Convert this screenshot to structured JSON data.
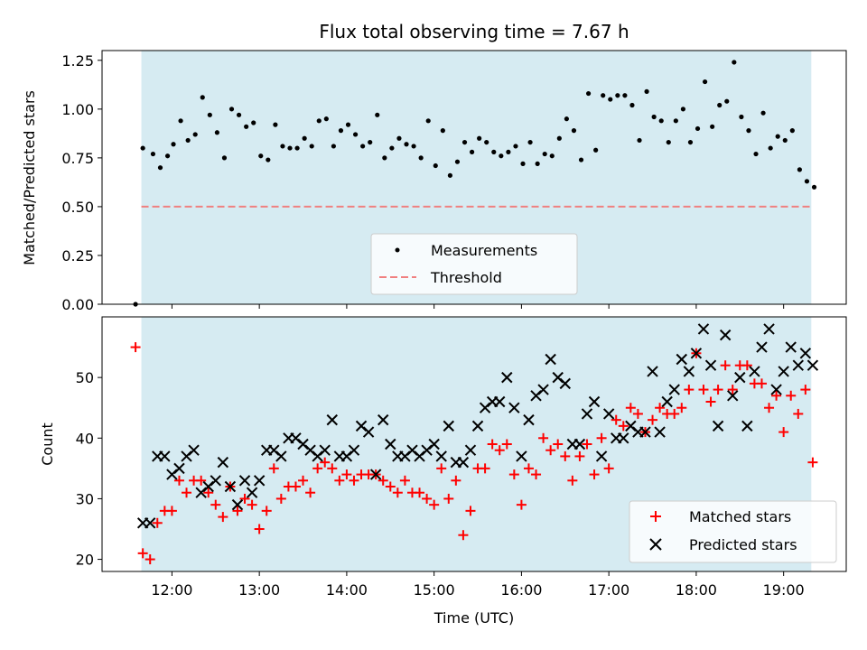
{
  "chart_data": [
    {
      "type": "scatter",
      "title": "Flux total observing time = 7.67 h",
      "xlabel": "",
      "ylabel": "Matched/Predicted stars",
      "xlim": [
        "11:12",
        "19:43"
      ],
      "ylim": [
        0,
        1.3
      ],
      "yticks": [
        0.0,
        0.25,
        0.5,
        0.75,
        1.0,
        1.25
      ],
      "ytick_labels": [
        "0.00",
        "0.25",
        "0.50",
        "0.75",
        "1.00",
        "1.25"
      ],
      "shaded_span": [
        "11:39",
        "19:19"
      ],
      "shaded_color": "#add8e6",
      "legend_position": "lower center",
      "threshold": {
        "name": "Threshold",
        "value": 0.5,
        "color": "#f08080",
        "style": "dashed"
      },
      "series": [
        {
          "name": "Measurements",
          "color": "#000000",
          "marker": "dot",
          "x": [
            "11:35",
            "11:40",
            "11:47",
            "11:52",
            "11:57",
            "12:01",
            "12:06",
            "12:11",
            "12:16",
            "12:21",
            "12:26",
            "12:31",
            "12:36",
            "12:41",
            "12:46",
            "12:51",
            "12:56",
            "13:01",
            "13:06",
            "13:11",
            "13:16",
            "13:21",
            "13:26",
            "13:31",
            "13:36",
            "13:41",
            "13:46",
            "13:51",
            "13:56",
            "14:01",
            "14:06",
            "14:11",
            "14:16",
            "14:21",
            "14:26",
            "14:31",
            "14:36",
            "14:41",
            "14:46",
            "14:51",
            "14:56",
            "15:01",
            "15:06",
            "15:11",
            "15:16",
            "15:21",
            "15:26",
            "15:31",
            "15:36",
            "15:41",
            "15:46",
            "15:51",
            "15:56",
            "16:01",
            "16:06",
            "16:11",
            "16:16",
            "16:21",
            "16:26",
            "16:31",
            "16:36",
            "16:41",
            "16:46",
            "16:51",
            "16:56",
            "17:01",
            "17:06",
            "17:11",
            "17:16",
            "17:21",
            "17:26",
            "17:31",
            "17:36",
            "17:41",
            "17:46",
            "17:51",
            "17:56",
            "18:01",
            "18:06",
            "18:11",
            "18:16",
            "18:21",
            "18:26",
            "18:31",
            "18:36",
            "18:41",
            "18:46",
            "18:51",
            "18:56",
            "19:01",
            "19:06",
            "19:11",
            "19:16",
            "19:21"
          ],
          "y": [
            0.0,
            0.8,
            0.77,
            0.7,
            0.76,
            0.82,
            0.94,
            0.84,
            0.87,
            1.06,
            0.97,
            0.88,
            0.75,
            1.0,
            0.97,
            0.91,
            0.93,
            0.76,
            0.74,
            0.92,
            0.81,
            0.8,
            0.8,
            0.85,
            0.81,
            0.94,
            0.95,
            0.81,
            0.89,
            0.92,
            0.87,
            0.81,
            0.83,
            0.97,
            0.75,
            0.8,
            0.85,
            0.82,
            0.81,
            0.75,
            0.94,
            0.71,
            0.89,
            0.66,
            0.73,
            0.83,
            0.78,
            0.85,
            0.83,
            0.78,
            0.76,
            0.78,
            0.81,
            0.72,
            0.83,
            0.72,
            0.77,
            0.76,
            0.85,
            0.95,
            0.89,
            0.74,
            1.08,
            0.79,
            1.07,
            1.05,
            1.07,
            1.07,
            1.02,
            0.84,
            1.09,
            0.96,
            0.94,
            0.83,
            0.94,
            1.0,
            0.83,
            0.9,
            1.14,
            0.91,
            1.02,
            1.04,
            1.24,
            0.96,
            0.89,
            0.77,
            0.98,
            0.8,
            0.86,
            0.84,
            0.89,
            0.69,
            0.63,
            0.6
          ]
        }
      ]
    },
    {
      "type": "scatter",
      "title": "",
      "xlabel": "Time (UTC)",
      "ylabel": "Count",
      "xlim": [
        "11:12",
        "19:43"
      ],
      "ylim": [
        18,
        60
      ],
      "yticks": [
        20,
        30,
        40,
        50
      ],
      "xticks": [
        "12:00",
        "13:00",
        "14:00",
        "15:00",
        "16:00",
        "17:00",
        "18:00",
        "19:00"
      ],
      "shaded_span": [
        "11:39",
        "19:19"
      ],
      "shaded_color": "#add8e6",
      "legend_position": "lower right",
      "series": [
        {
          "name": "Matched stars",
          "color": "#ff0000",
          "marker": "plus",
          "x": [
            "11:35",
            "11:40",
            "11:45",
            "11:50",
            "11:55",
            "12:00",
            "12:05",
            "12:10",
            "12:15",
            "12:20",
            "12:25",
            "12:30",
            "12:35",
            "12:40",
            "12:45",
            "12:50",
            "12:55",
            "13:00",
            "13:05",
            "13:10",
            "13:15",
            "13:20",
            "13:25",
            "13:30",
            "13:35",
            "13:40",
            "13:45",
            "13:50",
            "13:55",
            "14:00",
            "14:05",
            "14:10",
            "14:15",
            "14:20",
            "14:25",
            "14:30",
            "14:35",
            "14:40",
            "14:45",
            "14:50",
            "14:55",
            "15:00",
            "15:05",
            "15:10",
            "15:15",
            "15:20",
            "15:25",
            "15:30",
            "15:35",
            "15:40",
            "15:45",
            "15:50",
            "15:55",
            "16:00",
            "16:05",
            "16:10",
            "16:15",
            "16:20",
            "16:25",
            "16:30",
            "16:35",
            "16:40",
            "16:45",
            "16:50",
            "16:55",
            "17:00",
            "17:05",
            "17:10",
            "17:15",
            "17:20",
            "17:25",
            "17:30",
            "17:35",
            "17:40",
            "17:45",
            "17:50",
            "17:55",
            "18:00",
            "18:05",
            "18:10",
            "18:15",
            "18:20",
            "18:25",
            "18:30",
            "18:35",
            "18:40",
            "18:45",
            "18:50",
            "18:55",
            "19:00",
            "19:05",
            "19:10",
            "19:15",
            "19:20"
          ],
          "y": [
            55,
            21,
            20,
            26,
            28,
            28,
            33,
            31,
            33,
            33,
            31,
            29,
            27,
            32,
            28,
            30,
            29,
            25,
            28,
            35,
            30,
            32,
            32,
            33,
            31,
            35,
            36,
            35,
            33,
            34,
            33,
            34,
            34,
            34,
            33,
            32,
            31,
            33,
            31,
            31,
            30,
            29,
            35,
            30,
            33,
            24,
            28,
            35,
            35,
            39,
            38,
            39,
            34,
            29,
            35,
            34,
            40,
            38,
            39,
            37,
            33,
            37,
            39,
            34,
            40,
            35,
            43,
            42,
            45,
            44,
            41,
            43,
            45,
            44,
            44,
            45,
            48,
            54,
            48,
            46,
            48,
            52,
            48,
            52,
            52,
            49,
            49,
            45,
            47,
            41,
            47,
            44,
            48,
            36
          ]
        },
        {
          "name": "Predicted stars",
          "color": "#000000",
          "marker": "x",
          "x": [
            "11:40",
            "11:45",
            "11:50",
            "11:55",
            "12:00",
            "12:05",
            "12:10",
            "12:15",
            "12:20",
            "12:25",
            "12:30",
            "12:35",
            "12:40",
            "12:45",
            "12:50",
            "12:55",
            "13:00",
            "13:05",
            "13:10",
            "13:15",
            "13:20",
            "13:25",
            "13:30",
            "13:35",
            "13:40",
            "13:45",
            "13:50",
            "13:55",
            "14:00",
            "14:05",
            "14:10",
            "14:15",
            "14:20",
            "14:25",
            "14:30",
            "14:35",
            "14:40",
            "14:45",
            "14:50",
            "14:55",
            "15:00",
            "15:05",
            "15:10",
            "15:15",
            "15:20",
            "15:25",
            "15:30",
            "15:35",
            "15:40",
            "15:45",
            "15:50",
            "15:55",
            "16:00",
            "16:05",
            "16:10",
            "16:15",
            "16:20",
            "16:25",
            "16:30",
            "16:35",
            "16:40",
            "16:45",
            "16:50",
            "16:55",
            "17:00",
            "17:05",
            "17:10",
            "17:15",
            "17:20",
            "17:25",
            "17:30",
            "17:35",
            "17:40",
            "17:45",
            "17:50",
            "17:55",
            "18:00",
            "18:05",
            "18:10",
            "18:15",
            "18:20",
            "18:25",
            "18:30",
            "18:35",
            "18:40",
            "18:45",
            "18:50",
            "18:55",
            "19:00",
            "19:05",
            "19:10",
            "19:15",
            "19:20"
          ],
          "y": [
            26,
            26,
            37,
            37,
            34,
            35,
            37,
            38,
            31,
            32,
            33,
            36,
            32,
            29,
            33,
            31,
            33,
            38,
            38,
            37,
            40,
            40,
            39,
            38,
            37,
            38,
            43,
            37,
            37,
            38,
            42,
            41,
            34,
            43,
            39,
            37,
            37,
            38,
            37,
            38,
            39,
            37,
            42,
            36,
            36,
            38,
            42,
            45,
            46,
            46,
            50,
            45,
            37,
            43,
            47,
            48,
            53,
            50,
            49,
            39,
            39,
            44,
            46,
            37,
            44,
            40,
            40,
            42,
            41,
            41,
            51,
            41,
            46,
            48,
            53,
            51,
            54,
            58,
            52,
            42,
            57,
            47,
            50,
            42,
            51,
            55,
            58,
            48,
            51,
            55,
            52,
            54,
            52
          ]
        }
      ]
    }
  ]
}
